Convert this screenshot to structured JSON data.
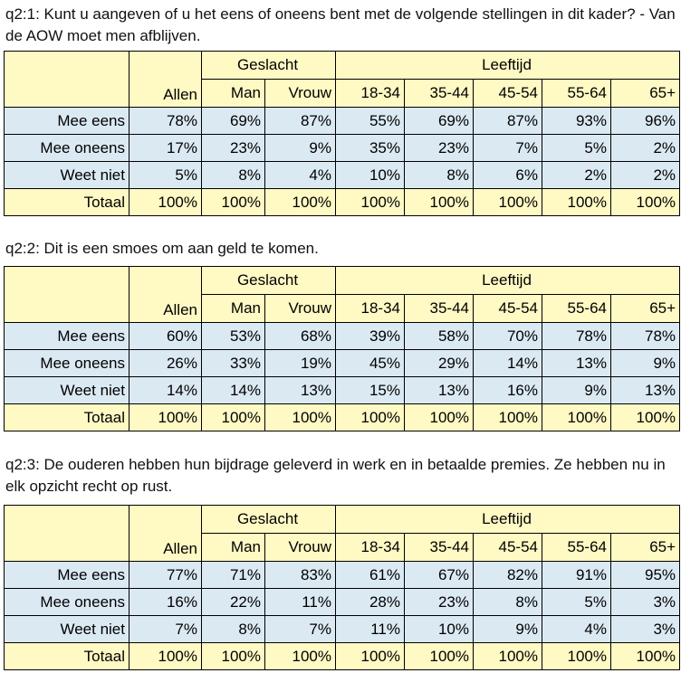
{
  "columns": {
    "group_gender": "Geslacht",
    "group_age": "Leeftijd",
    "headers": [
      "Allen",
      "Man",
      "Vrouw",
      "18-34",
      "35-44",
      "45-54",
      "55-64",
      "65+"
    ]
  },
  "questions": [
    {
      "title": "q2:1: Kunt u aangeven of u het eens of oneens bent met de volgende stellingen in dit kader? - Van de AOW moet men afblijven.",
      "rows": [
        {
          "label": "Mee eens",
          "values": [
            "78%",
            "69%",
            "87%",
            "55%",
            "69%",
            "87%",
            "93%",
            "96%"
          ]
        },
        {
          "label": "Mee oneens",
          "values": [
            "17%",
            "23%",
            "9%",
            "35%",
            "23%",
            "7%",
            "5%",
            "2%"
          ]
        },
        {
          "label": "Weet niet",
          "values": [
            "5%",
            "8%",
            "4%",
            "10%",
            "8%",
            "6%",
            "2%",
            "2%"
          ]
        },
        {
          "label": "Totaal",
          "values": [
            "100%",
            "100%",
            "100%",
            "100%",
            "100%",
            "100%",
            "100%",
            "100%"
          ]
        }
      ]
    },
    {
      "title": "q2:2:  Dit is een smoes om aan geld te komen.",
      "rows": [
        {
          "label": "Mee eens",
          "values": [
            "60%",
            "53%",
            "68%",
            "39%",
            "58%",
            "70%",
            "78%",
            "78%"
          ]
        },
        {
          "label": "Mee oneens",
          "values": [
            "26%",
            "33%",
            "19%",
            "45%",
            "29%",
            "14%",
            "13%",
            "9%"
          ]
        },
        {
          "label": "Weet niet",
          "values": [
            "14%",
            "14%",
            "13%",
            "15%",
            "13%",
            "16%",
            "9%",
            "13%"
          ]
        },
        {
          "label": "Totaal",
          "values": [
            "100%",
            "100%",
            "100%",
            "100%",
            "100%",
            "100%",
            "100%",
            "100%"
          ]
        }
      ]
    },
    {
      "title": "q2:3: De ouderen hebben hun bijdrage geleverd in werk en in betaalde premies. Ze hebben nu in elk opzicht recht op rust.",
      "rows": [
        {
          "label": "Mee eens",
          "values": [
            "77%",
            "71%",
            "83%",
            "61%",
            "67%",
            "82%",
            "91%",
            "95%"
          ]
        },
        {
          "label": "Mee oneens",
          "values": [
            "16%",
            "22%",
            "11%",
            "28%",
            "23%",
            "8%",
            "5%",
            "3%"
          ]
        },
        {
          "label": "Weet niet",
          "values": [
            "7%",
            "8%",
            "7%",
            "11%",
            "10%",
            "9%",
            "4%",
            "3%"
          ]
        },
        {
          "label": "Totaal",
          "values": [
            "100%",
            "100%",
            "100%",
            "100%",
            "100%",
            "100%",
            "100%",
            "100%"
          ]
        }
      ]
    }
  ],
  "colors": {
    "header_fill": "#fff9c4",
    "data_fill": "#dbe9f3",
    "border": "#000000"
  }
}
